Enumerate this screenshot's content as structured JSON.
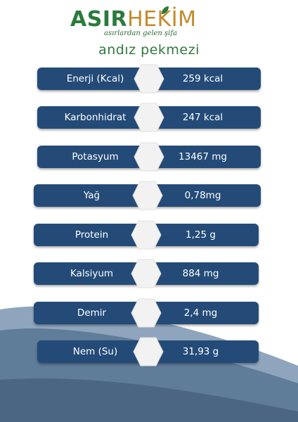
{
  "brand": {
    "name_part1": "ASIR",
    "name_part2": "HEKİM",
    "tagline": "asırlardan gelen şifa"
  },
  "product": {
    "title": "andız pekmezi"
  },
  "colors": {
    "pill": "#244b78",
    "brand_green": "#2a7a3c",
    "brand_gold": "#c48a2a",
    "wave": "#5f7c99"
  },
  "nutrients": [
    {
      "label": "Enerji (Kcal)",
      "value": "259 kcal"
    },
    {
      "label": "Karbonhidrat",
      "value": "247 kcal"
    },
    {
      "label": "Potasyum",
      "value": "13467 mg"
    },
    {
      "label": "Yağ",
      "value": "0,78mg"
    },
    {
      "label": "Protein",
      "value": "1,25 g"
    },
    {
      "label": "Kalsiyum",
      "value": "884 mg"
    },
    {
      "label": "Demir",
      "value": "2,4 mg"
    },
    {
      "label": "Nem (Su)",
      "value": "31,93 g"
    }
  ]
}
